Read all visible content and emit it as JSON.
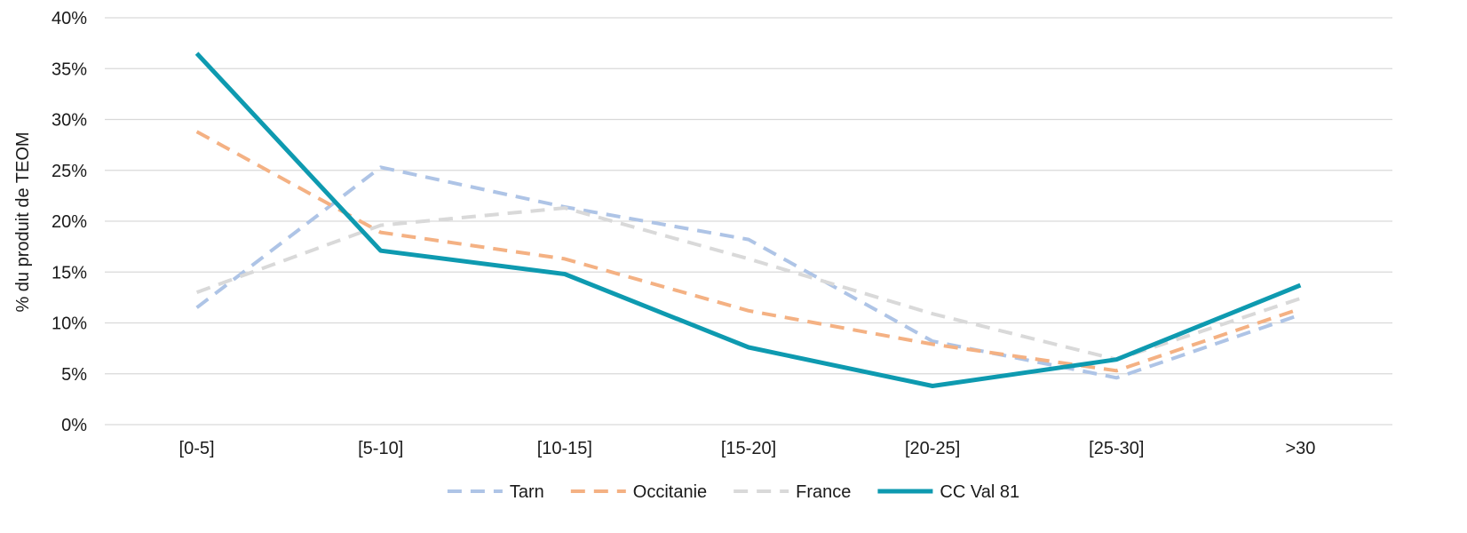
{
  "chart_data": {
    "type": "line",
    "categories": [
      "[0-5]",
      "[5-10]",
      "[10-15]",
      "[15-20]",
      "[20-25]",
      "[25-30]",
      ">30"
    ],
    "ylabel": "% du produit de TEOM",
    "xlabel": "",
    "ylim": [
      0,
      40
    ],
    "yticks": [
      "0%",
      "5%",
      "10%",
      "15%",
      "20%",
      "25%",
      "30%",
      "35%",
      "40%"
    ],
    "grid": true,
    "legend_position": "bottom",
    "series": [
      {
        "name": "Tarn",
        "values": [
          11.5,
          25.3,
          21.4,
          18.2,
          8.2,
          4.6,
          10.8
        ],
        "color": "#aec4e6",
        "dash": true
      },
      {
        "name": "Occitanie",
        "values": [
          28.8,
          18.9,
          16.3,
          11.2,
          7.9,
          5.3,
          11.4
        ],
        "color": "#f4b183",
        "dash": true
      },
      {
        "name": "France",
        "values": [
          13.0,
          19.6,
          21.3,
          16.3,
          10.9,
          6.4,
          12.4
        ],
        "color": "#d9d9d9",
        "dash": true
      },
      {
        "name": "CC Val 81",
        "values": [
          36.5,
          17.1,
          14.8,
          7.6,
          3.8,
          6.4,
          13.7
        ],
        "color": "#0e9ab0",
        "dash": false
      }
    ]
  }
}
